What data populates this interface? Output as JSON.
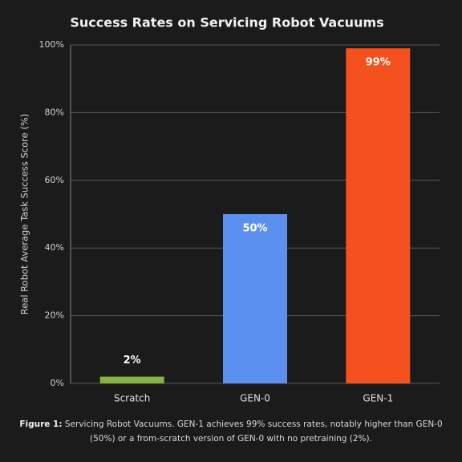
{
  "chart_data": {
    "type": "bar",
    "title": "Success Rates on Servicing Robot Vacuums",
    "ylabel": "Real Robot Average Task Success Score (%)",
    "categories": [
      "Scratch",
      "GEN-0",
      "GEN-1"
    ],
    "values": [
      2,
      50,
      99
    ],
    "value_labels": [
      "2%",
      "50%",
      "99%"
    ],
    "colors": [
      "#86b340",
      "#5b8ff0",
      "#f4511e"
    ],
    "ylim": [
      0,
      100
    ],
    "yticks": [
      {
        "value": 0,
        "label": "0%"
      },
      {
        "value": 20,
        "label": "20%"
      },
      {
        "value": 40,
        "label": "40%"
      },
      {
        "value": 60,
        "label": "60%"
      },
      {
        "value": 80,
        "label": "80%"
      },
      {
        "value": 100,
        "label": "100%"
      }
    ],
    "grid": true,
    "caption_label": "Figure 1:",
    "caption_text": "Servicing Robot Vacuums. GEN-1 achieves 99% success rates, notably higher than GEN-0 (50%) or a from-scratch version of GEN-0 with no pretraining (2%)."
  }
}
